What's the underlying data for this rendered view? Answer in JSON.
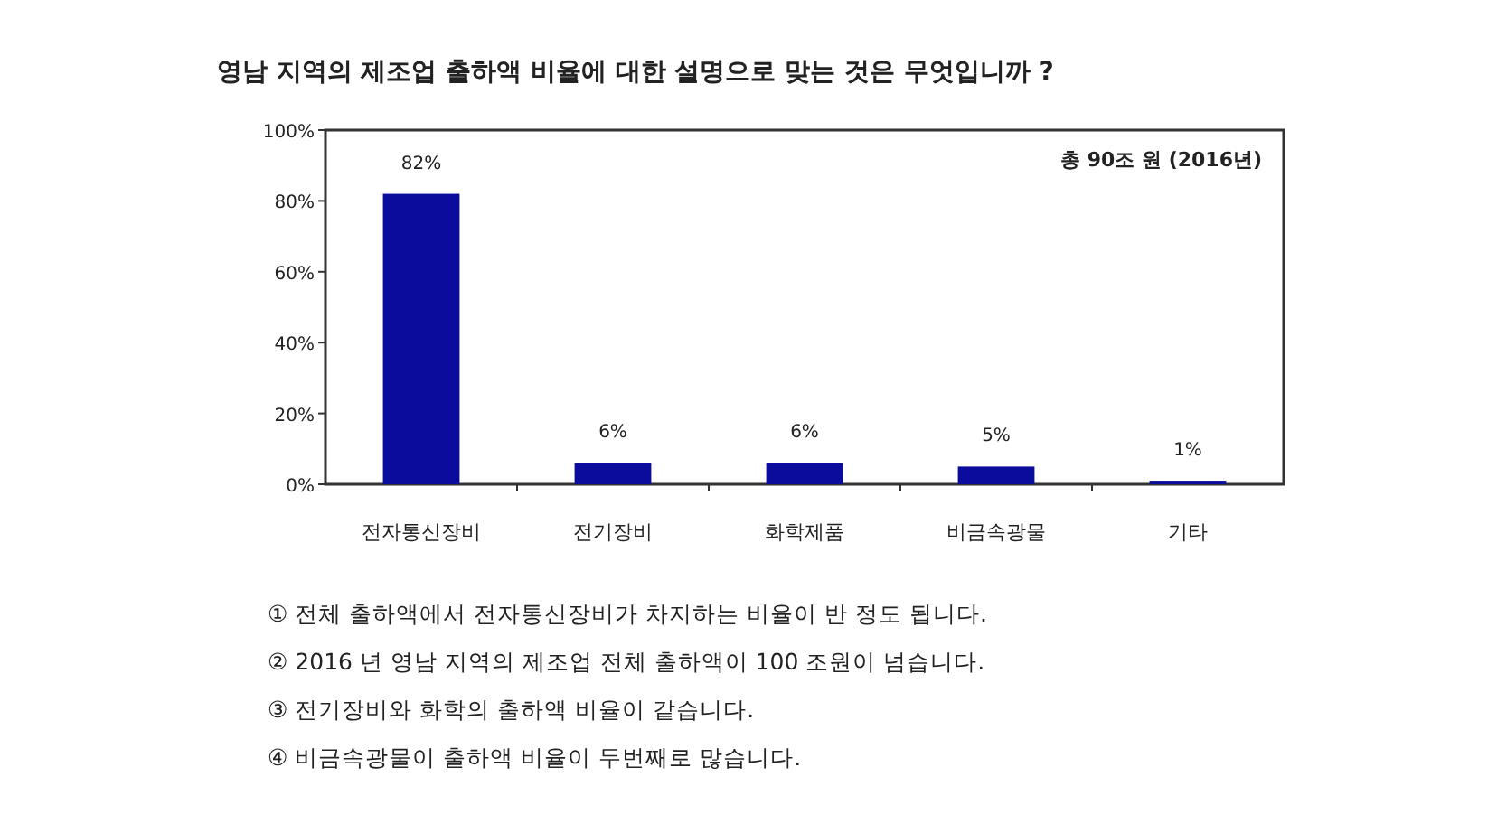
{
  "chart_data": {
    "type": "bar",
    "title": "영남 지역의 제조업 출하액 비율에 대한 설명으로 맞는 것은 무엇입니까 ?",
    "categories": [
      "전자통신장비",
      "전기장비",
      "화학제품",
      "비금속광물",
      "기타"
    ],
    "values": [
      82,
      6,
      6,
      5,
      1
    ],
    "value_labels": [
      "82%",
      "6%",
      "6%",
      "5%",
      "1%"
    ],
    "color": "#0c0c9c",
    "ylim": [
      0,
      100
    ],
    "yticks": [
      {
        "value": 0,
        "label": "0%"
      },
      {
        "value": 20,
        "label": "20%"
      },
      {
        "value": 40,
        "label": "40%"
      },
      {
        "value": 60,
        "label": "60%"
      },
      {
        "value": 80,
        "label": "80%"
      },
      {
        "value": 100,
        "label": "100%"
      }
    ],
    "annotations": [
      "총 90조 원 (2016년)",
      "① 전체 출하액에서 전자통신장비가 차지하는 비율이 반 정도 됩니다.",
      "② 2016 년 영남 지역의 제조업 전체 출하액이 100 조원이 넘습니다.",
      "③ 전기장비와 화학의 출하액 비율이 같습니다.",
      "④ 비금속광물이 출하액 비율이 두번째로 많습니다."
    ]
  }
}
